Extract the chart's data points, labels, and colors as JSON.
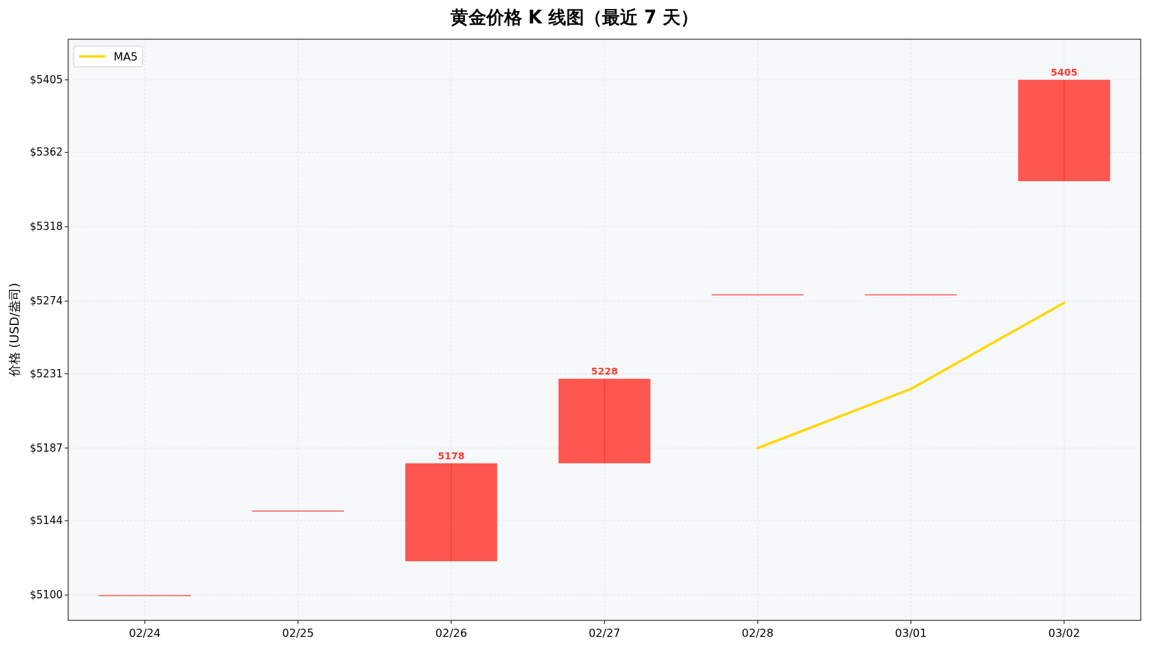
{
  "chart_data": {
    "type": "candlestick",
    "title": "黄金价格 K 线图（最近 7 天）",
    "ylabel": "价格 (USD/盎司)",
    "categories": [
      "02/24",
      "02/25",
      "02/26",
      "02/27",
      "02/28",
      "03/01",
      "03/02"
    ],
    "ylim": [
      5085,
      5429
    ],
    "yticks": [
      {
        "value": 5100,
        "label": "$5100"
      },
      {
        "value": 5144,
        "label": "$5144"
      },
      {
        "value": 5187,
        "label": "$5187"
      },
      {
        "value": 5231,
        "label": "$5231"
      },
      {
        "value": 5274,
        "label": "$5274"
      },
      {
        "value": 5318,
        "label": "$5318"
      },
      {
        "value": 5362,
        "label": "$5362"
      },
      {
        "value": 5405,
        "label": "$5405"
      }
    ],
    "grid": true,
    "legend": "top left",
    "series": [
      {
        "type": "candlestick",
        "color": "#ff3b30",
        "ohlc": [
          [
            5100,
            5100,
            5100,
            5100
          ],
          [
            5150,
            5150,
            5150,
            5150
          ],
          [
            5120,
            5178,
            5120,
            5178
          ],
          [
            5178,
            5228,
            5178,
            5228
          ],
          [
            5278,
            5278,
            5278,
            5278
          ],
          [
            5278,
            5278,
            5278,
            5278
          ],
          [
            5345,
            5405,
            5345,
            5405
          ]
        ],
        "value_labels": [
          null,
          null,
          "5178",
          "5228",
          null,
          null,
          "5405"
        ]
      },
      {
        "type": "line",
        "name": "MA5",
        "color": "#ffd700",
        "values": [
          null,
          null,
          null,
          null,
          5187,
          5222,
          5273
        ]
      }
    ]
  }
}
